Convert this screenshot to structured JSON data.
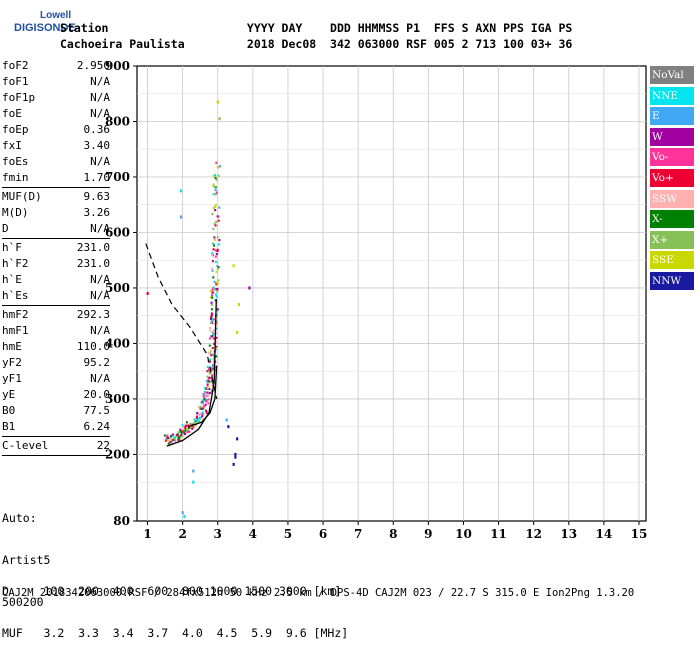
{
  "logo": {
    "line1": "Lowell",
    "line2": "DIGISONDE"
  },
  "header": {
    "line1": "Station                    YYYY DAY    DDD HHMMSS P1  FFS S AXN PPS IGA PS",
    "line2": "Cachoeira Paulista         2018 Dec08  342 063000 RSF 005 2 713 100 03+ 36"
  },
  "params": [
    {
      "k": "foF2",
      "v": "2.950"
    },
    {
      "k": "foF1",
      "v": "N/A"
    },
    {
      "k": "foF1p",
      "v": "N/A"
    },
    {
      "k": "foE",
      "v": "N/A"
    },
    {
      "k": "foEp",
      "v": "0.36"
    },
    {
      "k": "fxI",
      "v": "3.40"
    },
    {
      "k": "foEs",
      "v": "N/A"
    },
    {
      "k": "fmin",
      "v": "1.70"
    },
    {
      "sep": true
    },
    {
      "k": "MUF(D)",
      "v": "9.63"
    },
    {
      "k": "M(D)",
      "v": "3.26"
    },
    {
      "k": "D",
      "v": "N/A"
    },
    {
      "sep": true
    },
    {
      "k": "h`F",
      "v": "231.0"
    },
    {
      "k": "h`F2",
      "v": "231.0"
    },
    {
      "k": "h`E",
      "v": "N/A"
    },
    {
      "k": "h`Es",
      "v": "N/A"
    },
    {
      "sep": true
    },
    {
      "k": "hmF2",
      "v": "292.3"
    },
    {
      "k": "hmF1",
      "v": "N/A"
    },
    {
      "k": "hmE",
      "v": "110.0"
    },
    {
      "k": "yF2",
      "v": "95.2"
    },
    {
      "k": "yF1",
      "v": "N/A"
    },
    {
      "k": "yE",
      "v": "20.0"
    },
    {
      "k": "B0",
      "v": "77.5"
    },
    {
      "k": "B1",
      "v": "6.24"
    },
    {
      "sep": true
    },
    {
      "k": "C-level",
      "v": "22"
    },
    {
      "sep": true
    }
  ],
  "auto": {
    "line1": "Auto:",
    "line2": "Artist5",
    "line3": "500200"
  },
  "legend": [
    {
      "label": "NoVal",
      "color": "#808080"
    },
    {
      "label": "NNE",
      "color": "#00e5ee"
    },
    {
      "label": "E",
      "color": "#3fa9f5"
    },
    {
      "label": "W",
      "color": "#a000a0"
    },
    {
      "label": "Vo-",
      "color": "#ff3399"
    },
    {
      "label": "Vo+",
      "color": "#ee0033"
    },
    {
      "label": "SSW",
      "color": "#ffb0b0"
    },
    {
      "label": "X-",
      "color": "#008000"
    },
    {
      "label": "X+",
      "color": "#88c058"
    },
    {
      "label": "SSE",
      "color": "#c8d800"
    },
    {
      "label": "NNW",
      "color": "#1a1aa0"
    }
  ],
  "bottom": {
    "line1": "D     100  200  400  600  800 1000 1500 3000 [km]",
    "line2": "MUF   3.2  3.3  3.4  3.7  4.0  4.5  5.9  9.6 [MHz]"
  },
  "footer": "CAJ2M_2018342063000.RSF / 284fx512h 50 kHz 2.5 km / DPS-4D CAJ2M 023 / 22.7 S 315.0 E Ion2Png 1.3.20",
  "chart_data": {
    "type": "scatter",
    "title": "",
    "xlabel": "",
    "ylabel": "",
    "xlim": [
      0.7,
      15.2
    ],
    "ylim": [
      80,
      900
    ],
    "x_ticks": [
      1,
      2,
      3,
      4,
      5,
      6,
      7,
      8,
      9,
      10,
      11,
      12,
      13,
      14,
      15
    ],
    "y_ticks": [
      80,
      200,
      300,
      400,
      500,
      600,
      700,
      800,
      900
    ],
    "grid": true,
    "profile_curve": {
      "x": [
        1.55,
        2.0,
        2.45,
        2.75,
        2.9,
        2.96
      ],
      "y": [
        215,
        225,
        245,
        275,
        330,
        480
      ]
    },
    "profile_curve_2": {
      "x": [
        2.15,
        2.55,
        2.78,
        2.92,
        2.97
      ],
      "y": [
        250,
        258,
        275,
        300,
        360
      ]
    },
    "dashed_curve": {
      "x": [
        0.95,
        1.3,
        1.7,
        2.2,
        2.7,
        2.97
      ],
      "y": [
        580,
        520,
        470,
        430,
        380,
        300
      ]
    },
    "trace": {
      "x": [
        1.55,
        1.8,
        2.0,
        2.2,
        2.4,
        2.55,
        2.65,
        2.75,
        2.8,
        2.85,
        2.88,
        2.9,
        2.92,
        2.94,
        2.96,
        2.97
      ],
      "y": [
        225,
        232,
        240,
        250,
        262,
        278,
        298,
        320,
        345,
        375,
        410,
        450,
        500,
        560,
        640,
        720
      ]
    },
    "outliers": [
      {
        "x": 1.0,
        "y": 490,
        "c": "Vo+"
      },
      {
        "x": 1.95,
        "y": 675,
        "c": "NNE"
      },
      {
        "x": 1.95,
        "y": 628,
        "c": "E"
      },
      {
        "x": 2.0,
        "y": 95,
        "c": "E"
      },
      {
        "x": 2.05,
        "y": 88,
        "c": "NNE"
      },
      {
        "x": 2.3,
        "y": 150,
        "c": "NNE"
      },
      {
        "x": 2.3,
        "y": 170,
        "c": "E"
      },
      {
        "x": 3.55,
        "y": 228,
        "c": "NNW"
      },
      {
        "x": 3.5,
        "y": 200,
        "c": "NNW"
      },
      {
        "x": 3.45,
        "y": 182,
        "c": "NNW"
      },
      {
        "x": 3.5,
        "y": 195,
        "c": "NNW"
      },
      {
        "x": 3.9,
        "y": 500,
        "c": "W"
      },
      {
        "x": 3.25,
        "y": 262,
        "c": "E"
      },
      {
        "x": 3.3,
        "y": 250,
        "c": "NNW"
      },
      {
        "x": 3.55,
        "y": 420,
        "c": "SSE"
      },
      {
        "x": 3.6,
        "y": 470,
        "c": "SSE"
      },
      {
        "x": 3.45,
        "y": 540,
        "c": "SSE"
      },
      {
        "x": 3.0,
        "y": 835,
        "c": "SSE"
      },
      {
        "x": 3.05,
        "y": 805,
        "c": "X+"
      }
    ]
  }
}
